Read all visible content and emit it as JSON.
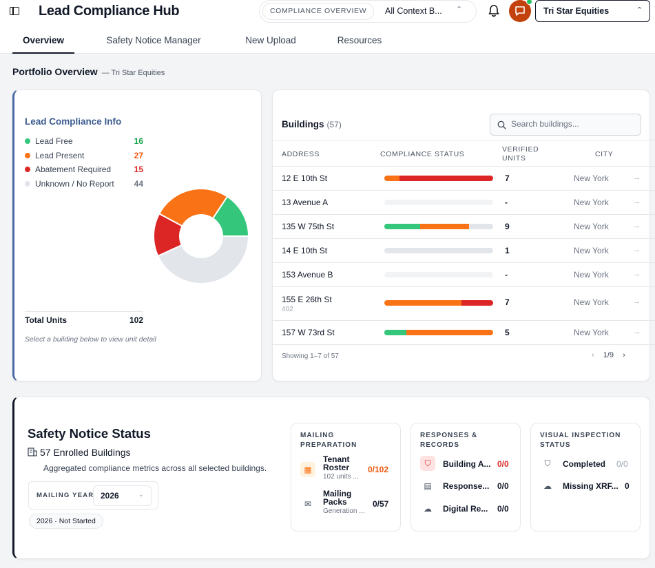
{
  "app": {
    "title": "Lead Compliance Hub"
  },
  "context": {
    "tag": "COMPLIANCE OVERVIEW",
    "value": "All Context B...",
    "tenant": "Tri Star Equities"
  },
  "tabs": [
    {
      "label": "Overview",
      "active": true
    },
    {
      "label": "Safety Notice Manager",
      "active": false
    },
    {
      "label": "New Upload",
      "active": false
    },
    {
      "label": "Resources",
      "active": false
    }
  ],
  "breadcrumb": {
    "title": "Portfolio Overview",
    "sub": "— Tri Star Equities"
  },
  "lead_info": {
    "title": "Lead Compliance Info",
    "legend": [
      {
        "label": "Lead Free",
        "value": "16",
        "color": "#34c77b"
      },
      {
        "label": "Lead Present",
        "value": "27",
        "color": "#f97316"
      },
      {
        "label": "Abatement Required",
        "value": "15",
        "color": "#dc2626"
      },
      {
        "label": "Unknown / No Report",
        "value": "44",
        "color": "#e2e5ea"
      }
    ],
    "total_label": "Total Units",
    "total_value": "102",
    "hint": "Select a building below to view unit detail"
  },
  "chart_data": {
    "type": "pie",
    "categories": [
      "Lead Free",
      "Lead Present",
      "Abatement Required",
      "Unknown / No Report"
    ],
    "values": [
      16,
      27,
      15,
      44
    ],
    "colors": [
      "#34c77b",
      "#f97316",
      "#dc2626",
      "#e2e5ea"
    ],
    "title": "Lead Compliance Info",
    "total": 102
  },
  "buildings": {
    "title": "Buildings",
    "count": "(57)",
    "search_placeholder": "Search buildings...",
    "columns": {
      "address": "ADDRESS",
      "status": "COMPLIANCE STATUS",
      "verified_1": "VERIFIED",
      "verified_2": "UNITS",
      "city": "CITY"
    },
    "rows": [
      {
        "address": "12 E 10th St",
        "sub": "",
        "verified": "7",
        "city": "New York",
        "segments": [
          {
            "color": "#f97316",
            "pct": 14
          },
          {
            "color": "#dc2626",
            "pct": 86
          }
        ]
      },
      {
        "address": "13 Avenue A",
        "sub": "",
        "verified": "-",
        "city": "New York",
        "segments": []
      },
      {
        "address": "135 W 75th St",
        "sub": "",
        "verified": "9",
        "city": "New York",
        "segments": [
          {
            "color": "#34c77b",
            "pct": 33
          },
          {
            "color": "#f97316",
            "pct": 45
          },
          {
            "color": "#e2e5ea",
            "pct": 22
          }
        ]
      },
      {
        "address": "14 E 10th St",
        "sub": "",
        "verified": "1",
        "city": "New York",
        "segments": [
          {
            "color": "#e2e5ea",
            "pct": 100
          }
        ]
      },
      {
        "address": "153 Avenue B",
        "sub": "",
        "verified": "-",
        "city": "New York",
        "segments": []
      },
      {
        "address": "155 E 26th St",
        "sub": "402",
        "verified": "7",
        "city": "New York",
        "segments": [
          {
            "color": "#f97316",
            "pct": 71
          },
          {
            "color": "#dc2626",
            "pct": 29
          }
        ]
      },
      {
        "address": "157 W 73rd St",
        "sub": "",
        "verified": "5",
        "city": "New York",
        "segments": [
          {
            "color": "#34c77b",
            "pct": 20
          },
          {
            "color": "#f97316",
            "pct": 80
          }
        ]
      }
    ],
    "showing": "Showing 1–7 of 57",
    "page": "1/9"
  },
  "safety": {
    "title": "Safety Notice Status",
    "enrolled": "57 Enrolled Buildings",
    "desc": "Aggregated compliance metrics across all selected buildings.",
    "year_label": "MAILING YEAR",
    "year": "2026",
    "status_chip": "2026 · Not Started",
    "mailing": {
      "head_1": "MAILING",
      "head_2": "PREPARATION",
      "items": [
        {
          "label_1": "Tenant",
          "label_2": "Roster",
          "sub": "102 units ...",
          "value": "0/102"
        },
        {
          "label_1": "Mailing",
          "label_2": "Packs",
          "sub": "Generation ...",
          "value": "0/57"
        }
      ]
    },
    "responses": {
      "head_1": "RESPONSES &",
      "head_2": "RECORDS",
      "items": [
        {
          "label": "Building A...",
          "value": "0/0"
        },
        {
          "label": "Response...",
          "value": "0/0"
        },
        {
          "label": "Digital Re...",
          "value": "0/0"
        }
      ]
    },
    "inspection": {
      "head_1": "VISUAL INSPECTION",
      "head_2": "STATUS",
      "items": [
        {
          "label": "Completed",
          "value": "0/0"
        },
        {
          "label": "Missing XRF...",
          "value": "0"
        }
      ]
    }
  }
}
